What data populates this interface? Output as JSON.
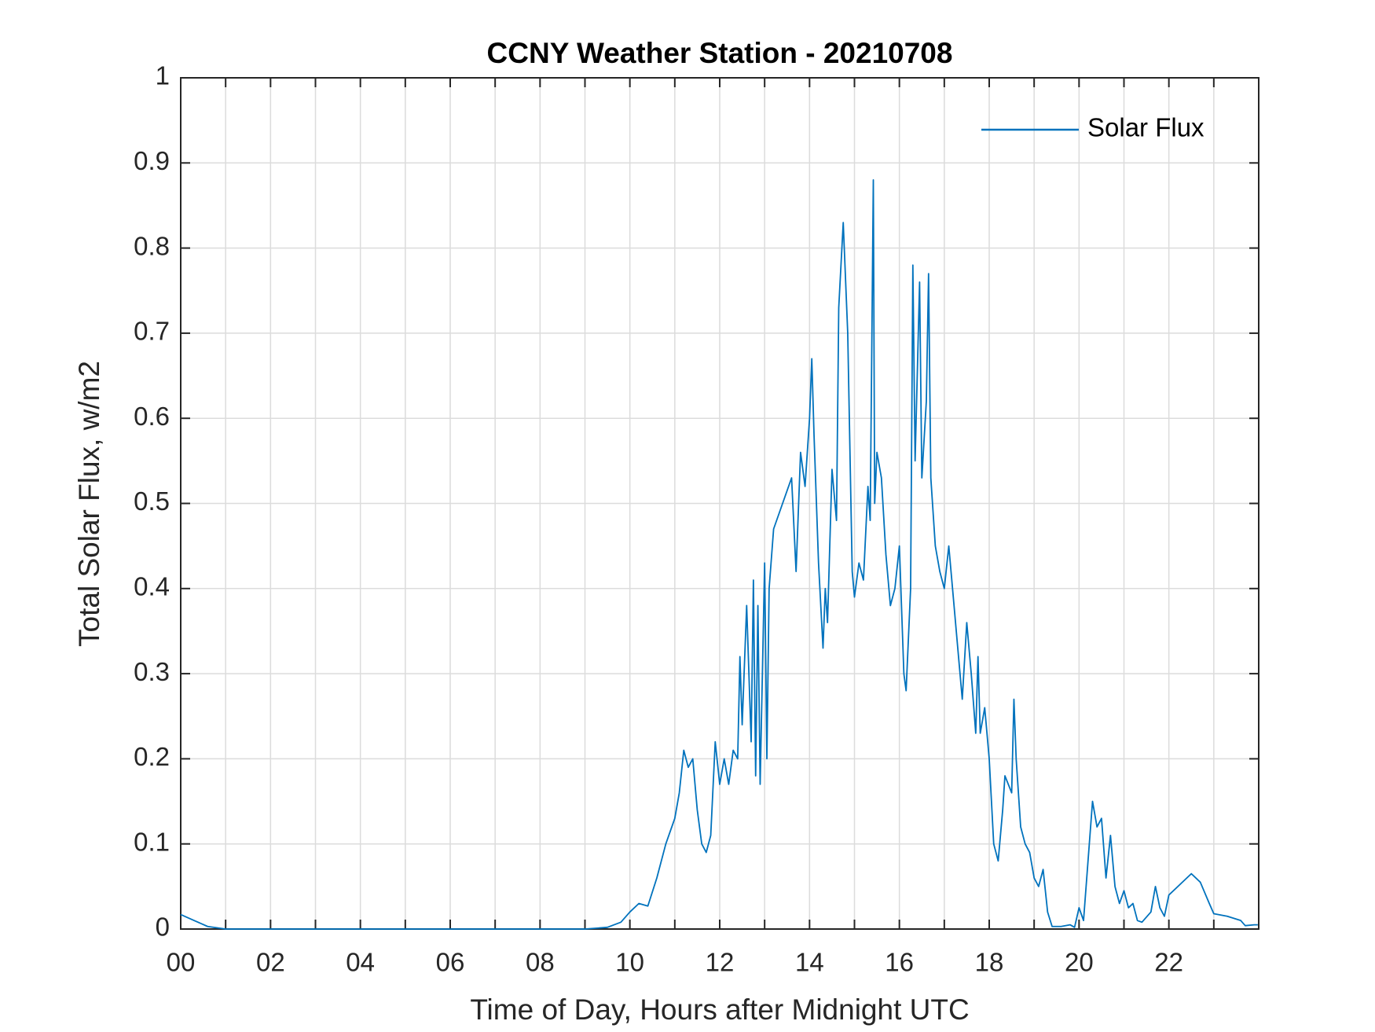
{
  "chart_data": {
    "type": "line",
    "title": "CCNY Weather Station - 20210708",
    "x_label": "Time of Day, Hours after Midnight UTC",
    "y_label": "Total Solar Flux, w/m2",
    "xlim": [
      0,
      24
    ],
    "ylim": [
      0,
      1
    ],
    "xticks": [
      {
        "value": 0,
        "label": "00"
      },
      {
        "value": 2,
        "label": "02"
      },
      {
        "value": 4,
        "label": "04"
      },
      {
        "value": 6,
        "label": "06"
      },
      {
        "value": 8,
        "label": "08"
      },
      10,
      12,
      14,
      16,
      18,
      20,
      22
    ],
    "xminorticks": [
      1,
      3,
      5,
      7,
      9,
      11,
      13,
      15,
      17,
      19,
      21,
      23
    ],
    "yticks": [
      0,
      0.1,
      0.2,
      0.3,
      0.4,
      0.5,
      0.6,
      0.7,
      0.8,
      0.9,
      1
    ],
    "grid": true,
    "legend_position": "upper-right",
    "x": [
      0,
      0.3,
      0.6,
      1,
      9,
      9.5,
      9.8,
      10,
      10.2,
      10.4,
      10.6,
      10.8,
      11,
      11.1,
      11.2,
      11.3,
      11.4,
      11.5,
      11.6,
      11.7,
      11.8,
      11.9,
      12,
      12.1,
      12.2,
      12.3,
      12.4,
      12.45,
      12.5,
      12.6,
      12.7,
      12.75,
      12.8,
      12.85,
      12.9,
      13,
      13.05,
      13.1,
      13.2,
      13.4,
      13.6,
      13.7,
      13.8,
      13.9,
      14,
      14.05,
      14.1,
      14.2,
      14.3,
      14.35,
      14.4,
      14.5,
      14.6,
      14.65,
      14.75,
      14.85,
      14.95,
      15,
      15.1,
      15.2,
      15.3,
      15.35,
      15.42,
      15.45,
      15.5,
      15.6,
      15.7,
      15.8,
      15.9,
      16,
      16.1,
      16.15,
      16.25,
      16.3,
      16.35,
      16.45,
      16.5,
      16.6,
      16.65,
      16.7,
      16.8,
      16.9,
      17,
      17.1,
      17.2,
      17.3,
      17.4,
      17.5,
      17.6,
      17.7,
      17.75,
      17.8,
      17.9,
      18,
      18.1,
      18.2,
      18.3,
      18.35,
      18.5,
      18.55,
      18.6,
      18.7,
      18.8,
      18.9,
      19,
      19.1,
      19.2,
      19.3,
      19.4,
      19.6,
      19.8,
      19.9,
      20,
      20.1,
      20.3,
      20.4,
      20.5,
      20.6,
      20.7,
      20.8,
      20.9,
      21,
      21.1,
      21.2,
      21.3,
      21.4,
      21.6,
      21.7,
      21.8,
      21.9,
      22,
      22.2,
      22.4,
      22.5,
      22.7,
      22.9,
      23,
      23.3,
      23.6,
      23.7,
      23.9,
      23.98
    ],
    "series": [
      {
        "name": "Solar Flux",
        "color": "#0072BD",
        "values": [
          0.017,
          0.01,
          0.003,
          0,
          0,
          0.002,
          0.008,
          0.02,
          0.03,
          0.027,
          0.06,
          0.1,
          0.13,
          0.16,
          0.21,
          0.19,
          0.2,
          0.14,
          0.1,
          0.09,
          0.11,
          0.22,
          0.17,
          0.2,
          0.17,
          0.21,
          0.2,
          0.32,
          0.24,
          0.38,
          0.22,
          0.41,
          0.18,
          0.38,
          0.17,
          0.43,
          0.2,
          0.4,
          0.47,
          0.5,
          0.53,
          0.42,
          0.56,
          0.52,
          0.6,
          0.67,
          0.58,
          0.43,
          0.33,
          0.4,
          0.36,
          0.54,
          0.48,
          0.73,
          0.83,
          0.7,
          0.42,
          0.39,
          0.43,
          0.41,
          0.52,
          0.48,
          0.88,
          0.5,
          0.56,
          0.53,
          0.44,
          0.38,
          0.4,
          0.45,
          0.3,
          0.28,
          0.4,
          0.78,
          0.55,
          0.76,
          0.53,
          0.62,
          0.77,
          0.53,
          0.45,
          0.42,
          0.4,
          0.45,
          0.39,
          0.33,
          0.27,
          0.36,
          0.3,
          0.23,
          0.32,
          0.23,
          0.26,
          0.2,
          0.1,
          0.08,
          0.14,
          0.18,
          0.16,
          0.27,
          0.2,
          0.12,
          0.1,
          0.09,
          0.06,
          0.05,
          0.07,
          0.02,
          0.003,
          0.003,
          0.005,
          0.002,
          0.025,
          0.01,
          0.15,
          0.12,
          0.13,
          0.06,
          0.11,
          0.05,
          0.03,
          0.045,
          0.025,
          0.03,
          0.01,
          0.008,
          0.02,
          0.05,
          0.025,
          0.015,
          0.04,
          0.05,
          0.06,
          0.065,
          0.055,
          0.03,
          0.018,
          0.015,
          0.01,
          0.004,
          0.005,
          0.005
        ]
      }
    ]
  }
}
